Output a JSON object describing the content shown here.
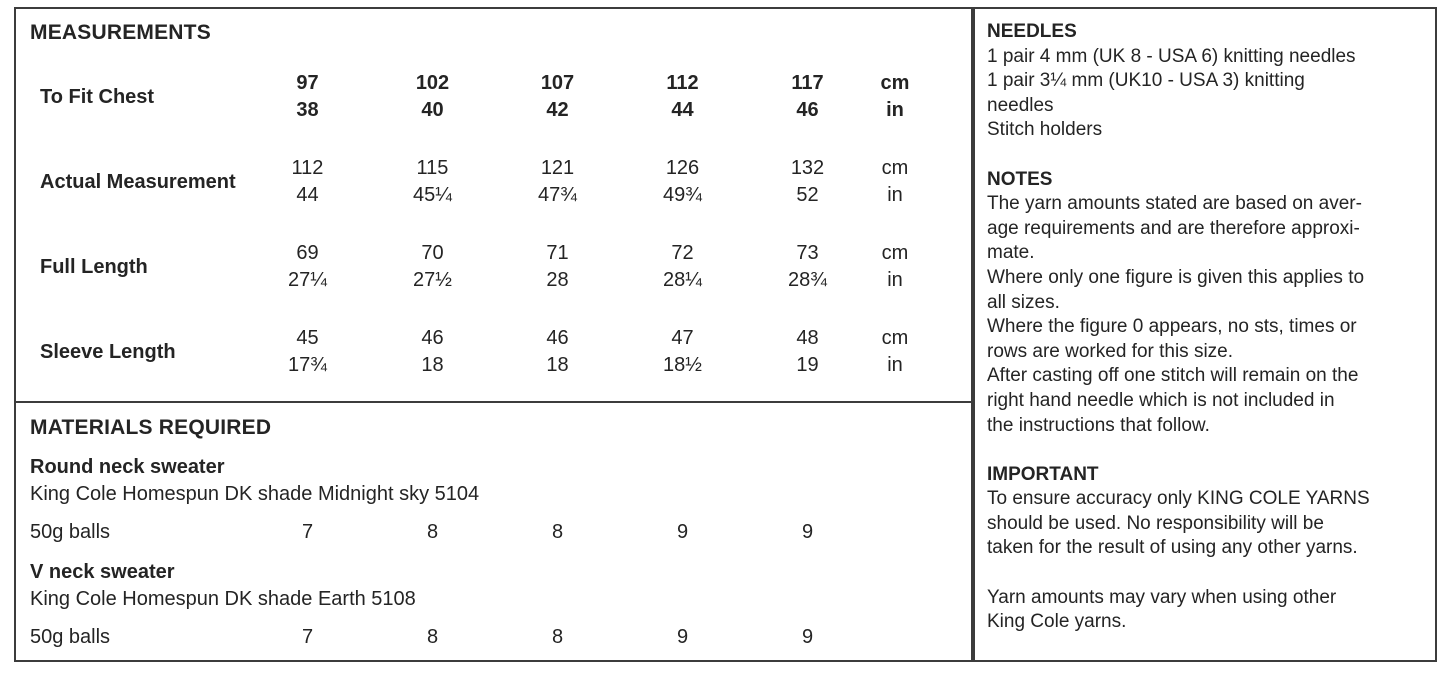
{
  "measurements": {
    "title": "MEASUREMENTS",
    "header": {
      "label": "To Fit Chest",
      "cm": [
        "97",
        "102",
        "107",
        "112",
        "117"
      ],
      "in": [
        "38",
        "40",
        "42",
        "44",
        "46"
      ],
      "unit_cm": "cm",
      "unit_in": "in"
    },
    "rows": [
      {
        "label": "Actual Measurement",
        "cm": [
          "112",
          "115",
          "121",
          "126",
          "132"
        ],
        "in": [
          "44",
          "45¼",
          "47¾",
          "49¾",
          "52"
        ],
        "unit_cm": "cm",
        "unit_in": "in"
      },
      {
        "label": "Full Length",
        "cm": [
          "69",
          "70",
          "71",
          "72",
          "73"
        ],
        "in": [
          "27¼",
          "27½",
          "28",
          "28¼",
          "28¾"
        ],
        "unit_cm": "cm",
        "unit_in": "in"
      },
      {
        "label": "Sleeve Length",
        "cm": [
          "45",
          "46",
          "46",
          "47",
          "48"
        ],
        "in": [
          "17¾",
          "18",
          "18",
          "18½",
          "19"
        ],
        "unit_cm": "cm",
        "unit_in": "in"
      }
    ]
  },
  "materials": {
    "title": "MATERIALS REQUIRED",
    "items": [
      {
        "name": "Round neck sweater",
        "yarn": "King Cole Homespun DK shade Midnight sky 5104",
        "balls_label": "50g balls",
        "balls": [
          "7",
          "8",
          "8",
          "9",
          "9"
        ]
      },
      {
        "name": "V neck sweater",
        "yarn": "King Cole Homespun DK shade Earth 5108",
        "balls_label": "50g balls",
        "balls": [
          "7",
          "8",
          "8",
          "9",
          "9"
        ]
      }
    ]
  },
  "right_panel": {
    "needles": {
      "title": "NEEDLES",
      "body": "1 pair 4 mm (UK 8 - USA 6) knitting needles\n1 pair 3¼ mm (UK10 - USA 3) knitting\nneedles\nStitch holders"
    },
    "notes": {
      "title": "NOTES",
      "body": "The yarn amounts stated are based on aver-\nage requirements and are therefore approxi-\nmate.\nWhere only one figure is given this applies to\nall sizes.\nWhere the figure 0 appears, no sts, times or\nrows are worked for this size.\nAfter casting off one stitch will remain on the\nright hand needle which is not included in\nthe instructions that follow."
    },
    "important": {
      "title": "IMPORTANT",
      "body": "To ensure accuracy only KING COLE YARNS\nshould be used. No responsibility will be\ntaken for the result of using any other yarns.",
      "body2": "Yarn amounts may vary when using other\nKing Cole yarns."
    }
  }
}
